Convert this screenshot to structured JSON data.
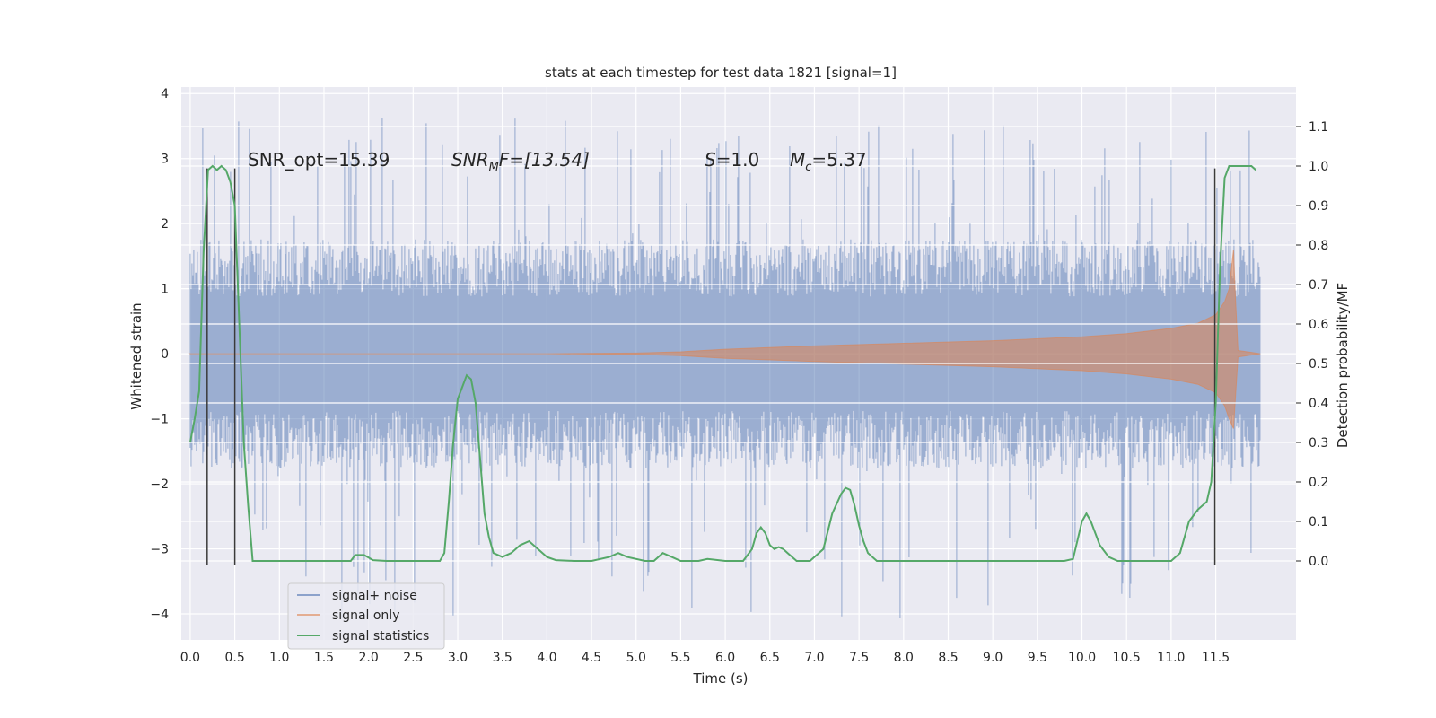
{
  "chart_data": {
    "type": "line",
    "title": "stats at each timestep for test data 1821 [signal=1]",
    "xlabel": "Time (s)",
    "ylabel": "Whitened strain",
    "ylabel_right": "Detection probability/MF",
    "xlim": [
      -0.1,
      12.4
    ],
    "ylim": [
      -4.4,
      4.1
    ],
    "ylim_right": [
      -0.2,
      1.2
    ],
    "x_ticks": [
      0.0,
      0.5,
      1.0,
      1.5,
      2.0,
      2.5,
      3.0,
      3.5,
      4.0,
      4.5,
      5.0,
      5.5,
      6.0,
      6.5,
      7.0,
      7.5,
      8.0,
      8.5,
      9.0,
      9.5,
      10.0,
      10.5,
      11.0,
      11.5
    ],
    "x_tick_labels": [
      "0.0",
      "0.5",
      "1.0",
      "1.5",
      "2.0",
      "2.5",
      "3.0",
      "3.5",
      "4.0",
      "4.5",
      "5.0",
      "5.5",
      "6.0",
      "6.5",
      "7.0",
      "7.5",
      "8.0",
      "8.5",
      "9.0",
      "9.5",
      "10.0",
      "10.5",
      "11.0",
      "11.5"
    ],
    "y_ticks": [
      -4,
      -3,
      -2,
      -1,
      0,
      1,
      2,
      3,
      4
    ],
    "y_tick_labels": [
      "−4",
      "−3",
      "−2",
      "−1",
      "0",
      "1",
      "2",
      "3",
      "4"
    ],
    "y_ticks_right": [
      0.0,
      0.1,
      0.2,
      0.3,
      0.4,
      0.5,
      0.6,
      0.7,
      0.8,
      0.9,
      1.0,
      1.1
    ],
    "y_tick_labels_right": [
      "0.0",
      "0.1",
      "0.2",
      "0.3",
      "0.4",
      "0.5",
      "0.6",
      "0.7",
      "0.8",
      "0.9",
      "1.0",
      "1.1"
    ],
    "grid": true,
    "legend_position": "lower-left",
    "annotations": {
      "snr_opt": "SNR_opt=15.39",
      "snr_mf_main": "SNR",
      "snr_mf_sub": "M",
      "snr_mf_rest": "F=[13.54]",
      "s_var": "S",
      "s_val": "=1.0",
      "mc_main": "M",
      "mc_sub": "c",
      "mc_val": "=5.37"
    },
    "series": [
      {
        "name": "signal+ noise",
        "color": "#4c72b0",
        "opacity": 0.5,
        "x_range": [
          0.0,
          12.0
        ],
        "typical_amplitude": 1.6,
        "peak_max": 3.7,
        "peak_min": -4.1
      },
      {
        "name": "signal only",
        "color": "#dd8452",
        "opacity": 0.5,
        "envelope": {
          "x": [
            0.0,
            2.0,
            4.0,
            5.0,
            5.5,
            6.0,
            7.0,
            8.0,
            9.0,
            10.0,
            10.5,
            11.0,
            11.3,
            11.5,
            11.6,
            11.65,
            11.7,
            11.72,
            11.75,
            12.0
          ],
          "upper": [
            0.0,
            0.0,
            0.0,
            0.01,
            0.03,
            0.07,
            0.12,
            0.16,
            0.2,
            0.26,
            0.31,
            0.39,
            0.47,
            0.6,
            0.8,
            1.0,
            1.6,
            0.9,
            0.05,
            0.0
          ],
          "lower": [
            0.0,
            0.0,
            0.0,
            -0.01,
            -0.03,
            -0.07,
            -0.12,
            -0.16,
            -0.2,
            -0.26,
            -0.31,
            -0.39,
            -0.47,
            -0.6,
            -0.8,
            -1.0,
            -1.15,
            -0.7,
            -0.05,
            0.0
          ]
        }
      },
      {
        "name": "signal statistics",
        "color": "#55a868",
        "axis": "right",
        "x": [
          0.0,
          0.05,
          0.1,
          0.15,
          0.2,
          0.25,
          0.3,
          0.35,
          0.4,
          0.45,
          0.5,
          0.55,
          0.6,
          0.65,
          0.7,
          0.75,
          0.8,
          1.0,
          1.2,
          1.4,
          1.6,
          1.8,
          1.85,
          1.95,
          2.05,
          2.2,
          2.4,
          2.6,
          2.8,
          2.85,
          2.9,
          2.95,
          3.0,
          3.05,
          3.1,
          3.15,
          3.2,
          3.25,
          3.3,
          3.35,
          3.4,
          3.5,
          3.6,
          3.7,
          3.8,
          3.9,
          4.0,
          4.1,
          4.3,
          4.5,
          4.7,
          4.8,
          4.9,
          5.1,
          5.2,
          5.3,
          5.4,
          5.5,
          5.7,
          5.8,
          6.0,
          6.2,
          6.3,
          6.35,
          6.4,
          6.45,
          6.5,
          6.55,
          6.6,
          6.65,
          6.7,
          6.8,
          6.95,
          7.1,
          7.2,
          7.3,
          7.35,
          7.4,
          7.45,
          7.5,
          7.55,
          7.6,
          7.7,
          7.9,
          8.5,
          9.0,
          9.5,
          9.8,
          9.9,
          10.0,
          10.05,
          10.1,
          10.2,
          10.3,
          10.4,
          10.6,
          10.8,
          11.0,
          11.1,
          11.2,
          11.3,
          11.4,
          11.45,
          11.5,
          11.55,
          11.6,
          11.65,
          11.7,
          11.8,
          11.9,
          11.95
        ],
        "y": [
          0.3,
          0.36,
          0.43,
          0.78,
          0.99,
          1.0,
          0.99,
          1.0,
          0.99,
          0.96,
          0.9,
          0.6,
          0.3,
          0.14,
          0.0,
          0.0,
          0.0,
          0.0,
          0.0,
          0.0,
          0.0,
          0.0,
          0.015,
          0.015,
          0.002,
          0.0,
          0.0,
          0.0,
          0.0,
          0.02,
          0.15,
          0.3,
          0.41,
          0.44,
          0.47,
          0.46,
          0.4,
          0.26,
          0.12,
          0.06,
          0.02,
          0.01,
          0.02,
          0.04,
          0.05,
          0.03,
          0.01,
          0.002,
          0.0,
          0.0,
          0.01,
          0.02,
          0.01,
          0.0,
          0.0,
          0.02,
          0.01,
          0.0,
          0.0,
          0.005,
          0.0,
          0.0,
          0.03,
          0.07,
          0.085,
          0.07,
          0.04,
          0.03,
          0.035,
          0.03,
          0.02,
          0.0,
          0.0,
          0.03,
          0.12,
          0.17,
          0.185,
          0.18,
          0.14,
          0.09,
          0.05,
          0.02,
          0.0,
          0.0,
          0.0,
          0.0,
          0.0,
          0.0,
          0.005,
          0.1,
          0.12,
          0.1,
          0.04,
          0.01,
          0.0,
          0.0,
          0.0,
          0.0,
          0.02,
          0.1,
          0.13,
          0.15,
          0.2,
          0.4,
          0.75,
          0.97,
          1.0,
          1.0,
          1.0,
          1.0,
          0.99
        ]
      }
    ],
    "vlines": {
      "color": "#3a3a3a",
      "x": [
        0.19,
        0.5,
        11.49
      ],
      "ranges": [
        [
          -3.25,
          2.85
        ],
        [
          -3.25,
          2.85
        ],
        [
          -3.25,
          2.85
        ]
      ]
    }
  }
}
